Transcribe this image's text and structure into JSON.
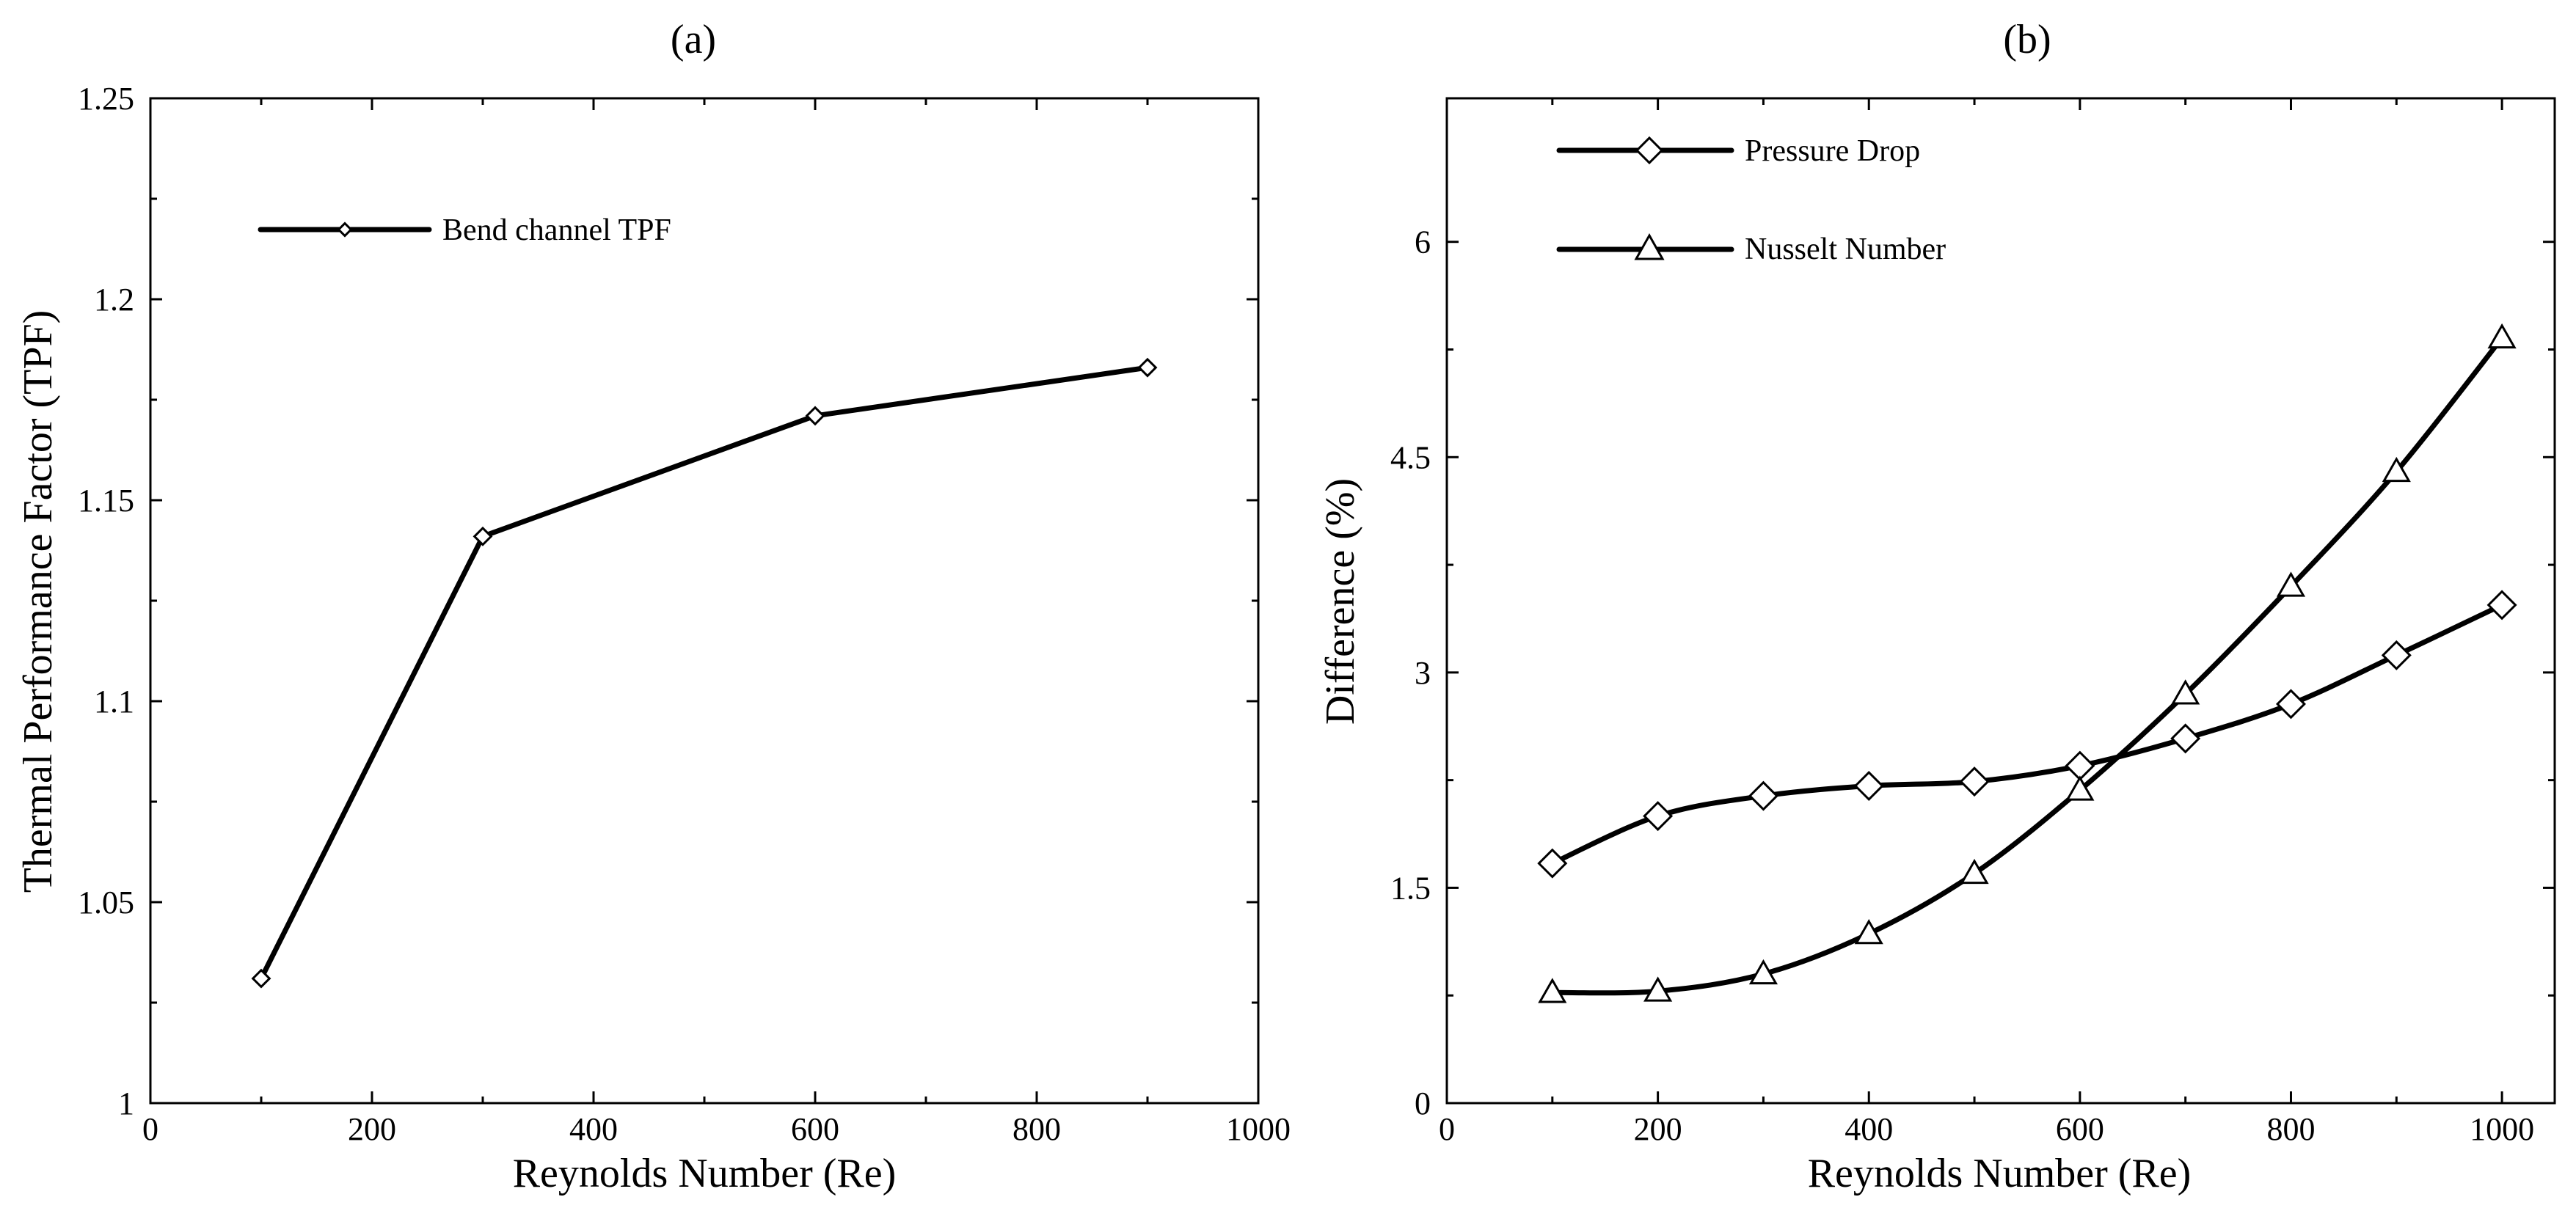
{
  "chart_data": [
    {
      "type": "line",
      "panel_label": "(a)",
      "title": "",
      "xlabel": "Reynolds Number (Re)",
      "ylabel": "Thermal Performance Factor (TPF)",
      "xlim": [
        0,
        1000
      ],
      "ylim": [
        1,
        1.25
      ],
      "xticks": [
        "0",
        "200",
        "400",
        "600",
        "800",
        "1000"
      ],
      "yticks": [
        "1",
        "1.05",
        "1.1",
        "1.15",
        "1.2",
        "1.25"
      ],
      "x_tick_values": [
        0,
        200,
        400,
        600,
        800,
        1000
      ],
      "y_tick_values": [
        1,
        1.05,
        1.1,
        1.15,
        1.2,
        1.25
      ],
      "grid": false,
      "legend_position": "top-left",
      "series": [
        {
          "name": "Bend channel TPF",
          "marker": "diamond",
          "smooth": false,
          "x": [
            100,
            300,
            600,
            900
          ],
          "values": [
            1.031,
            1.141,
            1.171,
            1.183
          ]
        }
      ]
    },
    {
      "type": "line",
      "panel_label": "(b)",
      "title": "",
      "xlabel": "Reynolds Number (Re)",
      "ylabel": "Difference (%)",
      "xlim": [
        0,
        1050
      ],
      "ylim": [
        0,
        7
      ],
      "xticks": [
        "0",
        "200",
        "400",
        "600",
        "800",
        "1000"
      ],
      "yticks": [
        "0",
        "1.5",
        "3",
        "4.5",
        "6"
      ],
      "x_tick_values": [
        0,
        200,
        400,
        600,
        800,
        1000
      ],
      "y_tick_values": [
        0,
        1.5,
        3,
        4.5,
        6
      ],
      "grid": false,
      "legend_position": "top-left",
      "series": [
        {
          "name": "Pressure Drop",
          "marker": "diamond",
          "smooth": true,
          "x": [
            100,
            200,
            300,
            400,
            500,
            600,
            700,
            800,
            900,
            1000
          ],
          "values": [
            1.67,
            2.0,
            2.14,
            2.21,
            2.24,
            2.35,
            2.54,
            2.78,
            3.12,
            3.47
          ]
        },
        {
          "name": "Nusselt Number",
          "marker": "triangle",
          "smooth": true,
          "x": [
            100,
            200,
            300,
            400,
            500,
            600,
            700,
            800,
            900,
            1000
          ],
          "values": [
            0.77,
            0.78,
            0.9,
            1.18,
            1.6,
            2.18,
            2.85,
            3.6,
            4.4,
            5.33
          ]
        }
      ]
    }
  ]
}
